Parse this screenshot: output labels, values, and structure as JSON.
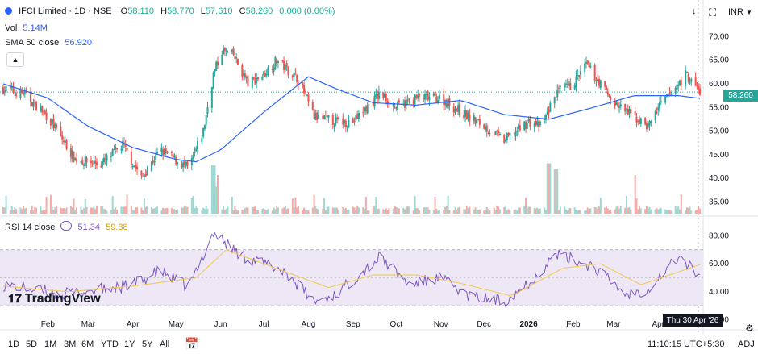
{
  "header": {
    "title": "IFCI Limited · 1D · NSE",
    "o_label": "O",
    "o_value": "58.110",
    "h_label": "H",
    "h_value": "58.770",
    "l_label": "L",
    "l_value": "57.610",
    "c_label": "C",
    "c_value": "58.260",
    "change": "0.000 (0.00%)",
    "currency": "INR"
  },
  "vol_legend": {
    "label": "Vol",
    "value": "5.14M"
  },
  "sma_legend": {
    "label": "SMA 50 close",
    "value": "56.920"
  },
  "rsi_legend": {
    "label": "RSI 14 close",
    "value1": "51.34",
    "value2": "59.38"
  },
  "last_price_tag": "58.260",
  "crosshair_date": "Thu 30 Apr '26",
  "logo": "TradingView",
  "colors": {
    "up": "#26a69a",
    "down": "#ef5350",
    "sma": "#2962ff",
    "rsi": "#7e57c2",
    "rsi_ma": "#f2c94c",
    "band": "#ede7f6"
  },
  "toolbar": {
    "ranges": [
      "1D",
      "5D",
      "1M",
      "3M",
      "6M",
      "YTD",
      "1Y",
      "5Y",
      "All"
    ],
    "time": "11:10:15 UTC+5:30",
    "adj": "ADJ"
  },
  "chart_data": {
    "type": "candlestick",
    "x_axis_labels": [
      "Feb",
      "Mar",
      "Apr",
      "May",
      "Jun",
      "Jul",
      "Aug",
      "Sep",
      "Oct",
      "Nov",
      "Dec",
      "2026",
      "Feb",
      "Mar",
      "Apr"
    ],
    "price_axis": {
      "ticks": [
        35,
        40,
        45,
        50,
        55,
        60,
        65,
        70
      ],
      "ylim": [
        32.5,
        74
      ]
    },
    "rsi_axis": {
      "ticks": [
        20,
        40,
        60,
        80
      ],
      "ylim": [
        18,
        86
      ],
      "band": [
        30,
        70
      ]
    },
    "price_anchors": [
      {
        "date": "2025-01-01",
        "close": 59.0
      },
      {
        "date": "2025-01-15",
        "close": 58.0
      },
      {
        "date": "2025-02-01",
        "close": 53.0
      },
      {
        "date": "2025-02-20",
        "close": 44.0
      },
      {
        "date": "2025-03-10",
        "close": 43.0
      },
      {
        "date": "2025-03-25",
        "close": 47.0
      },
      {
        "date": "2025-04-07",
        "close": 40.0
      },
      {
        "date": "2025-04-20",
        "close": 46.0
      },
      {
        "date": "2025-05-10",
        "close": 42.0
      },
      {
        "date": "2025-05-20",
        "close": 50.0
      },
      {
        "date": "2025-05-27",
        "close": 62.0
      },
      {
        "date": "2025-06-02",
        "close": 67.0
      },
      {
        "date": "2025-06-10",
        "close": 66.0
      },
      {
        "date": "2025-06-20",
        "close": 60.0
      },
      {
        "date": "2025-07-01",
        "close": 62.0
      },
      {
        "date": "2025-07-10",
        "close": 65.0
      },
      {
        "date": "2025-07-25",
        "close": 61.0
      },
      {
        "date": "2025-08-05",
        "close": 53.0
      },
      {
        "date": "2025-08-20",
        "close": 52.0
      },
      {
        "date": "2025-09-01",
        "close": 52.0
      },
      {
        "date": "2025-09-20",
        "close": 58.0
      },
      {
        "date": "2025-10-01",
        "close": 55.0
      },
      {
        "date": "2025-10-15",
        "close": 57.0
      },
      {
        "date": "2025-11-01",
        "close": 57.0
      },
      {
        "date": "2025-11-15",
        "close": 54.0
      },
      {
        "date": "2025-12-01",
        "close": 51.0
      },
      {
        "date": "2025-12-15",
        "close": 48.0
      },
      {
        "date": "2026-01-01",
        "close": 52.0
      },
      {
        "date": "2026-01-10",
        "close": 51.0
      },
      {
        "date": "2026-01-20",
        "close": 58.0
      },
      {
        "date": "2026-02-01",
        "close": 60.0
      },
      {
        "date": "2026-02-10",
        "close": 64.0
      },
      {
        "date": "2026-02-20",
        "close": 60.0
      },
      {
        "date": "2026-03-01",
        "close": 56.0
      },
      {
        "date": "2026-03-15",
        "close": 53.0
      },
      {
        "date": "2026-03-25",
        "close": 51.0
      },
      {
        "date": "2026-04-01",
        "close": 55.0
      },
      {
        "date": "2026-04-10",
        "close": 58.0
      },
      {
        "date": "2026-04-20",
        "close": 62.0
      },
      {
        "date": "2026-04-30",
        "close": 58.26
      }
    ],
    "sma50_anchors": [
      {
        "date": "2025-01-01",
        "value": 60.0
      },
      {
        "date": "2025-02-01",
        "value": 57.0
      },
      {
        "date": "2025-03-01",
        "value": 51.0
      },
      {
        "date": "2025-04-01",
        "value": 46.5
      },
      {
        "date": "2025-05-01",
        "value": 44.0
      },
      {
        "date": "2025-05-15",
        "value": 43.5
      },
      {
        "date": "2025-06-01",
        "value": 46.0
      },
      {
        "date": "2025-07-01",
        "value": 54.0
      },
      {
        "date": "2025-08-01",
        "value": 61.5
      },
      {
        "date": "2025-08-20",
        "value": 59.0
      },
      {
        "date": "2025-09-15",
        "value": 56.0
      },
      {
        "date": "2025-10-15",
        "value": 55.5
      },
      {
        "date": "2025-11-15",
        "value": 56.5
      },
      {
        "date": "2025-12-15",
        "value": 53.5
      },
      {
        "date": "2026-01-15",
        "value": 52.5
      },
      {
        "date": "2026-02-15",
        "value": 55.0
      },
      {
        "date": "2026-03-15",
        "value": 57.5
      },
      {
        "date": "2026-04-15",
        "value": 57.5
      },
      {
        "date": "2026-04-30",
        "value": 56.92
      }
    ],
    "rsi_anchors": [
      {
        "date": "2025-01-01",
        "value": 45
      },
      {
        "date": "2025-01-20",
        "value": 42
      },
      {
        "date": "2025-02-10",
        "value": 38
      },
      {
        "date": "2025-03-01",
        "value": 40
      },
      {
        "date": "2025-04-01",
        "value": 45
      },
      {
        "date": "2025-04-20",
        "value": 55
      },
      {
        "date": "2025-05-10",
        "value": 43
      },
      {
        "date": "2025-05-27",
        "value": 82
      },
      {
        "date": "2025-06-15",
        "value": 66
      },
      {
        "date": "2025-07-15",
        "value": 55
      },
      {
        "date": "2025-08-05",
        "value": 33
      },
      {
        "date": "2025-08-20",
        "value": 38
      },
      {
        "date": "2025-09-20",
        "value": 65
      },
      {
        "date": "2025-10-10",
        "value": 45
      },
      {
        "date": "2025-11-01",
        "value": 50
      },
      {
        "date": "2025-11-20",
        "value": 37
      },
      {
        "date": "2025-12-15",
        "value": 33
      },
      {
        "date": "2026-01-05",
        "value": 50
      },
      {
        "date": "2026-01-20",
        "value": 67
      },
      {
        "date": "2026-02-15",
        "value": 58
      },
      {
        "date": "2026-03-10",
        "value": 38
      },
      {
        "date": "2026-03-25",
        "value": 42
      },
      {
        "date": "2026-04-15",
        "value": 65
      },
      {
        "date": "2026-04-30",
        "value": 51.34
      }
    ],
    "rsi_ma_anchors": [
      {
        "date": "2025-01-01",
        "value": 44
      },
      {
        "date": "2025-02-15",
        "value": 40
      },
      {
        "date": "2025-04-01",
        "value": 44
      },
      {
        "date": "2025-05-15",
        "value": 50
      },
      {
        "date": "2025-06-05",
        "value": 70
      },
      {
        "date": "2025-07-01",
        "value": 60
      },
      {
        "date": "2025-08-15",
        "value": 43
      },
      {
        "date": "2025-09-15",
        "value": 52
      },
      {
        "date": "2025-10-15",
        "value": 52
      },
      {
        "date": "2025-11-15",
        "value": 46
      },
      {
        "date": "2025-12-20",
        "value": 37
      },
      {
        "date": "2026-01-25",
        "value": 57
      },
      {
        "date": "2026-02-20",
        "value": 60
      },
      {
        "date": "2026-03-20",
        "value": 45
      },
      {
        "date": "2026-04-30",
        "value": 59.38
      }
    ],
    "volume_spikes": [
      {
        "date": "2025-05-27",
        "value": 5.0
      },
      {
        "date": "2025-05-30",
        "value": 2.8
      },
      {
        "date": "2026-01-15",
        "value": 5.2
      },
      {
        "date": "2026-01-20",
        "value": 4.6
      },
      {
        "date": "2026-03-15",
        "value": 4.0
      }
    ]
  }
}
